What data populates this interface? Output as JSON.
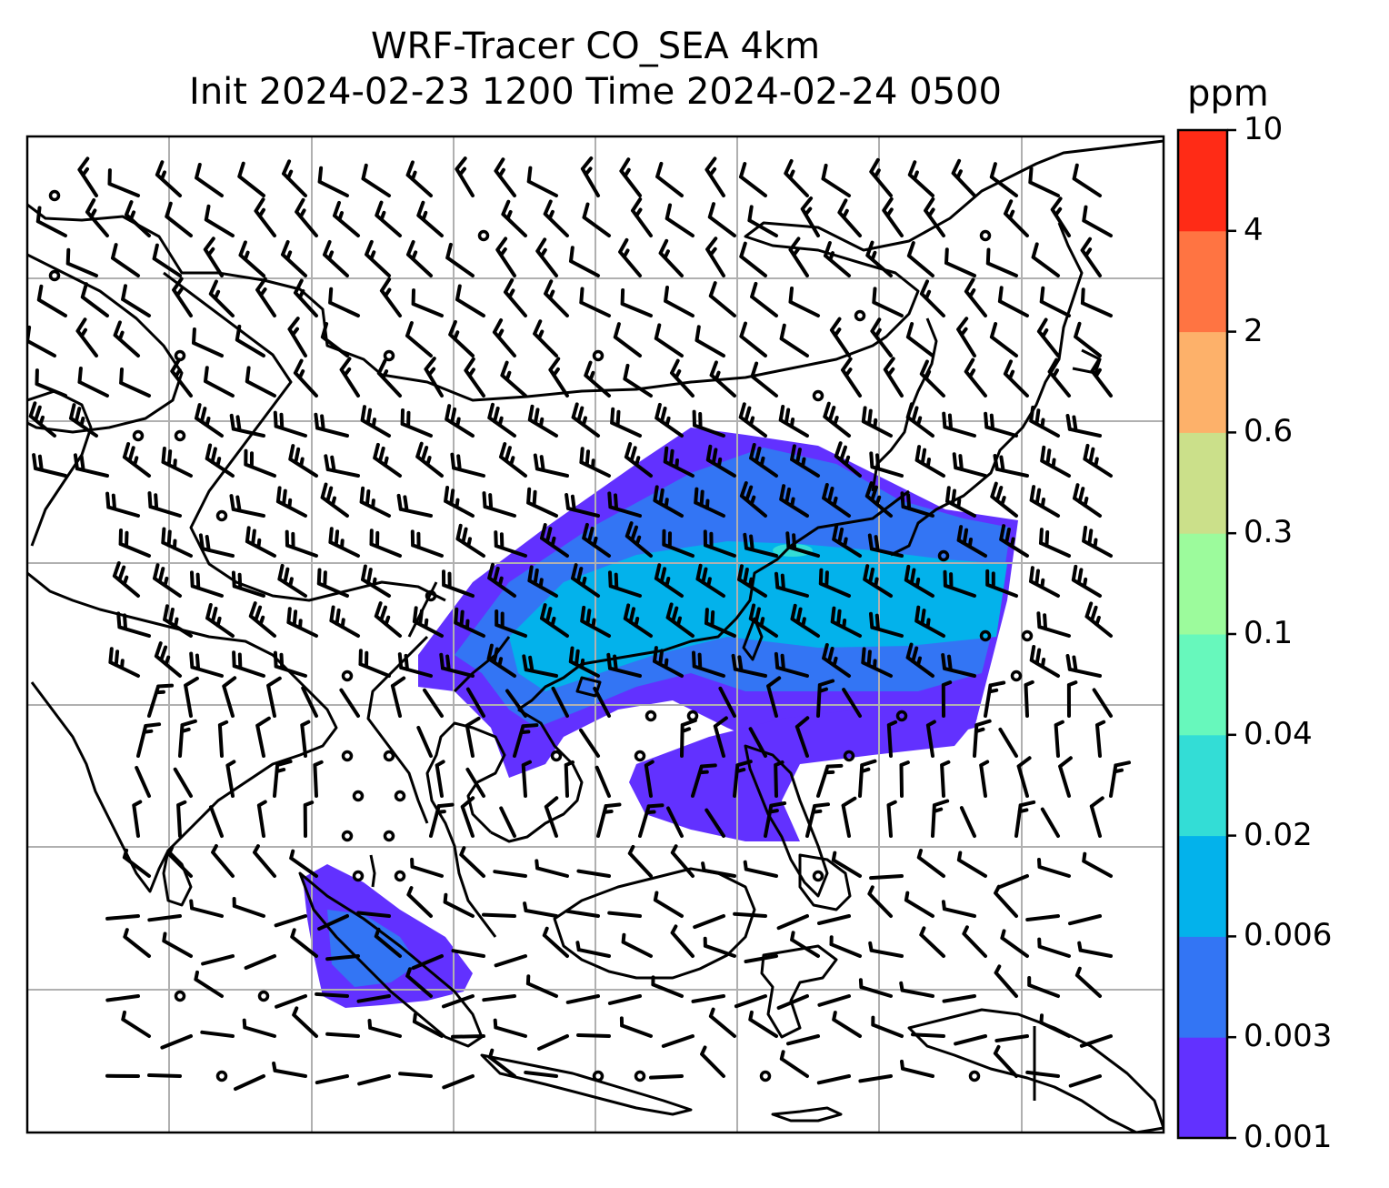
{
  "title": {
    "line1": "WRF-Tracer CO_SEA 4km",
    "line2": "Init 2024-02-23 1200 Time 2024-02-24 0500"
  },
  "colorbar": {
    "unit": "ppm",
    "levels": [
      "0.001",
      "0.003",
      "0.006",
      "0.02",
      "0.04",
      "0.1",
      "0.3",
      "0.6",
      "2",
      "4",
      "10"
    ],
    "colors": [
      "#6231ff",
      "#3375f4",
      "#03b2eb",
      "#33ddd6",
      "#67f8bc",
      "#9cfb9c",
      "#cbe08a",
      "#fdb16a",
      "#ff7442",
      "#ff2b16"
    ]
  },
  "map": {
    "projection": "lat-lon",
    "gridlines": true,
    "gridline_color": "#b0b0b0",
    "coastline_color": "#000000",
    "wind_barbs": true,
    "tracer_plume": "CO_SEA"
  }
}
